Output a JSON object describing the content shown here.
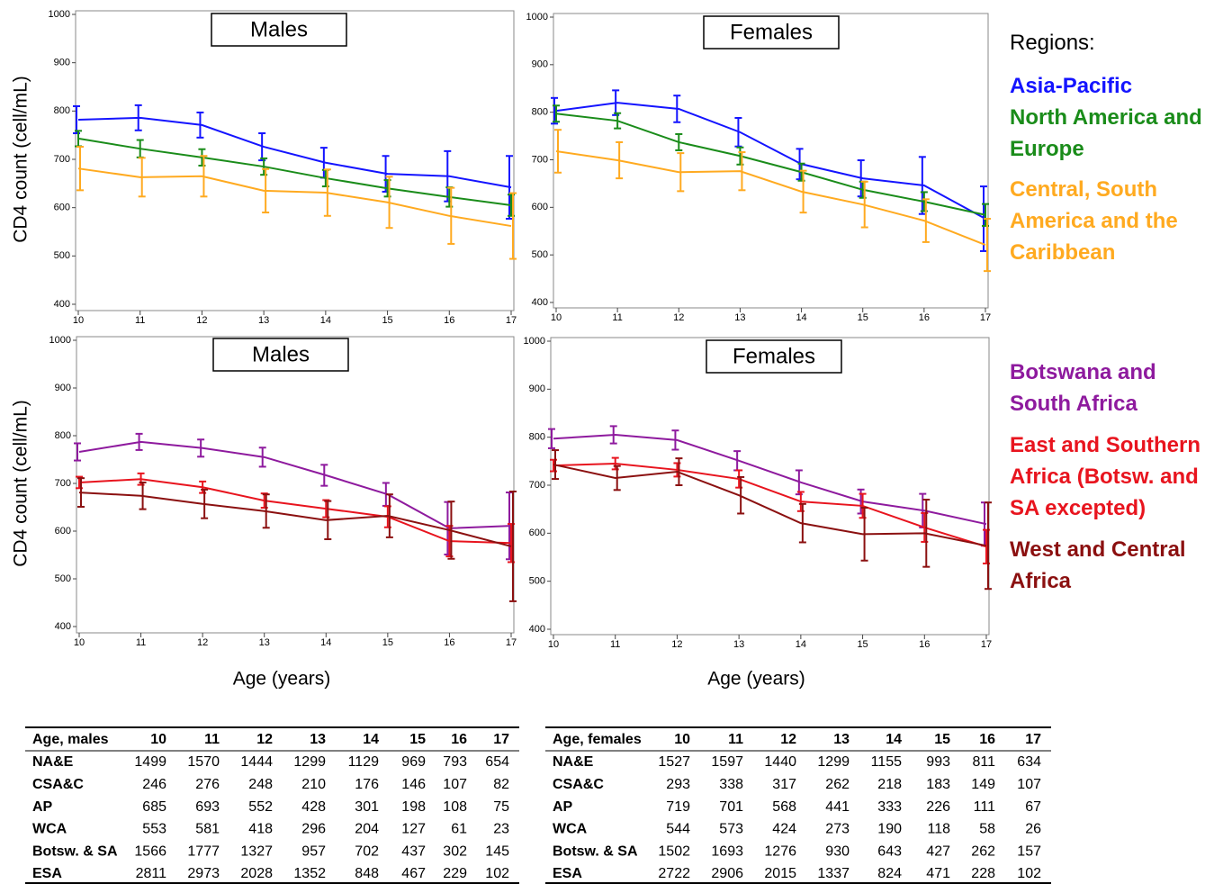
{
  "chart_data": [
    {
      "type": "line",
      "title": "Males",
      "y_label": "CD4 count (cell/mL)",
      "x": [
        10,
        11,
        12,
        13,
        14,
        15,
        16,
        17
      ],
      "xlim": [
        10,
        17
      ],
      "xticks": [
        10,
        11,
        12,
        13,
        14,
        15,
        16,
        17
      ],
      "ylim": [
        400,
        1000
      ],
      "yticks": [
        400,
        500,
        600,
        700,
        800,
        900,
        1000
      ],
      "series": [
        {
          "name": "Asia-Pacific",
          "color": "#1414ff",
          "values": [
            782,
            786,
            771,
            726,
            693,
            670,
            665,
            642
          ],
          "errors": [
            28,
            26,
            26,
            28,
            31,
            37,
            52,
            65
          ]
        },
        {
          "name": "North America and Europe",
          "color": "#1a8c1a",
          "values": [
            743,
            722,
            704,
            685,
            661,
            640,
            622,
            605
          ],
          "errors": [
            16,
            18,
            17,
            17,
            17,
            17,
            20,
            22
          ]
        },
        {
          "name": "Central, South America and the Caribbean",
          "color": "#ffaa20",
          "values": [
            681,
            663,
            665,
            635,
            631,
            611,
            583,
            562
          ],
          "errors": [
            45,
            40,
            42,
            45,
            48,
            53,
            58,
            68
          ]
        }
      ]
    },
    {
      "type": "line",
      "title": "Females",
      "x": [
        10,
        11,
        12,
        13,
        14,
        15,
        16,
        17
      ],
      "xlim": [
        10,
        17
      ],
      "xticks": [
        10,
        11,
        12,
        13,
        14,
        15,
        16,
        17
      ],
      "ylim": [
        400,
        1000
      ],
      "yticks": [
        400,
        500,
        600,
        700,
        800,
        900,
        1000
      ],
      "series": [
        {
          "name": "Asia-Pacific",
          "color": "#1414ff",
          "values": [
            803,
            820,
            807,
            758,
            691,
            661,
            646,
            576
          ],
          "errors": [
            27,
            26,
            28,
            30,
            32,
            38,
            60,
            68
          ]
        },
        {
          "name": "North America and Europe",
          "color": "#1a8c1a",
          "values": [
            797,
            782,
            737,
            708,
            674,
            637,
            612,
            584
          ],
          "errors": [
            17,
            16,
            17,
            18,
            18,
            17,
            20,
            23
          ]
        },
        {
          "name": "Central, South America and the Caribbean",
          "color": "#ffaa20",
          "values": [
            718,
            699,
            674,
            676,
            633,
            606,
            572,
            521
          ],
          "errors": [
            45,
            38,
            40,
            40,
            44,
            48,
            45,
            55
          ]
        }
      ]
    },
    {
      "type": "line",
      "title": "Males",
      "y_label": "CD4 count (cell/mL)",
      "x_label": "Age (years)",
      "x": [
        10,
        11,
        12,
        13,
        14,
        15,
        16,
        17
      ],
      "xlim": [
        10,
        17
      ],
      "xticks": [
        10,
        11,
        12,
        13,
        14,
        15,
        16,
        17
      ],
      "ylim": [
        400,
        1000
      ],
      "yticks": [
        400,
        500,
        600,
        700,
        800,
        900,
        1000
      ],
      "series": [
        {
          "name": "Botswana and South Africa",
          "color": "#8e1a9e",
          "values": [
            766,
            787,
            774,
            755,
            717,
            677,
            606,
            611
          ],
          "errors": [
            18,
            17,
            18,
            20,
            22,
            24,
            55,
            70
          ]
        },
        {
          "name": "East and Southern Africa (Botsw. and SA excepted)",
          "color": "#e8141e",
          "values": [
            702,
            709,
            692,
            664,
            647,
            630,
            579,
            575
          ],
          "errors": [
            12,
            12,
            12,
            15,
            18,
            22,
            32,
            40
          ]
        },
        {
          "name": "West and Central Africa",
          "color": "#8b1010",
          "values": [
            681,
            674,
            657,
            642,
            623,
            632,
            602,
            568
          ],
          "errors": [
            30,
            28,
            30,
            35,
            40,
            45,
            60,
            115
          ]
        }
      ]
    },
    {
      "type": "line",
      "title": "Females",
      "x_label": "Age (years)",
      "x": [
        10,
        11,
        12,
        13,
        14,
        15,
        16,
        17
      ],
      "xlim": [
        10,
        17
      ],
      "xticks": [
        10,
        11,
        12,
        13,
        14,
        15,
        16,
        17
      ],
      "ylim": [
        400,
        1000
      ],
      "yticks": [
        400,
        500,
        600,
        700,
        800,
        900,
        1000
      ],
      "series": [
        {
          "name": "Botswana and South Africa",
          "color": "#8e1a9e",
          "values": [
            797,
            805,
            794,
            751,
            706,
            666,
            647,
            619
          ],
          "errors": [
            20,
            18,
            20,
            20,
            25,
            25,
            35,
            45
          ]
        },
        {
          "name": "East and Southern Africa (Botsw. and SA excepted)",
          "color": "#e8141e",
          "values": [
            741,
            745,
            732,
            713,
            666,
            657,
            612,
            572
          ],
          "errors": [
            12,
            12,
            14,
            18,
            20,
            25,
            30,
            35
          ]
        },
        {
          "name": "West and Central Africa",
          "color": "#8b1010",
          "values": [
            743,
            715,
            728,
            679,
            621,
            598,
            600,
            574
          ],
          "errors": [
            30,
            25,
            28,
            38,
            40,
            55,
            70,
            90
          ]
        }
      ]
    }
  ],
  "legend_title": "Regions:",
  "tables": [
    {
      "header": [
        "Age, males",
        10,
        11,
        12,
        13,
        14,
        15,
        16,
        17
      ],
      "rows": [
        [
          "NA&E",
          1499,
          1570,
          1444,
          1299,
          1129,
          969,
          793,
          654
        ],
        [
          "CSA&C",
          246,
          276,
          248,
          210,
          176,
          146,
          107,
          82
        ],
        [
          "AP",
          685,
          693,
          552,
          428,
          301,
          198,
          108,
          75
        ],
        [
          "WCA",
          553,
          581,
          418,
          296,
          204,
          127,
          61,
          23
        ],
        [
          "Botsw. & SA",
          1566,
          1777,
          1327,
          957,
          702,
          437,
          302,
          145
        ],
        [
          "ESA",
          2811,
          2973,
          2028,
          1352,
          848,
          467,
          229,
          102
        ]
      ]
    },
    {
      "header": [
        "Age, females",
        10,
        11,
        12,
        13,
        14,
        15,
        16,
        17
      ],
      "rows": [
        [
          "NA&E",
          1527,
          1597,
          1440,
          1299,
          1155,
          993,
          811,
          634
        ],
        [
          "CSA&C",
          293,
          338,
          317,
          262,
          218,
          183,
          149,
          107
        ],
        [
          "AP",
          719,
          701,
          568,
          441,
          333,
          226,
          111,
          67
        ],
        [
          "WCA",
          544,
          573,
          424,
          273,
          190,
          118,
          58,
          26
        ],
        [
          "Botsw. & SA",
          1502,
          1693,
          1276,
          930,
          643,
          427,
          262,
          157
        ],
        [
          "ESA",
          2722,
          2906,
          2015,
          1337,
          824,
          471,
          228,
          102
        ]
      ]
    }
  ]
}
